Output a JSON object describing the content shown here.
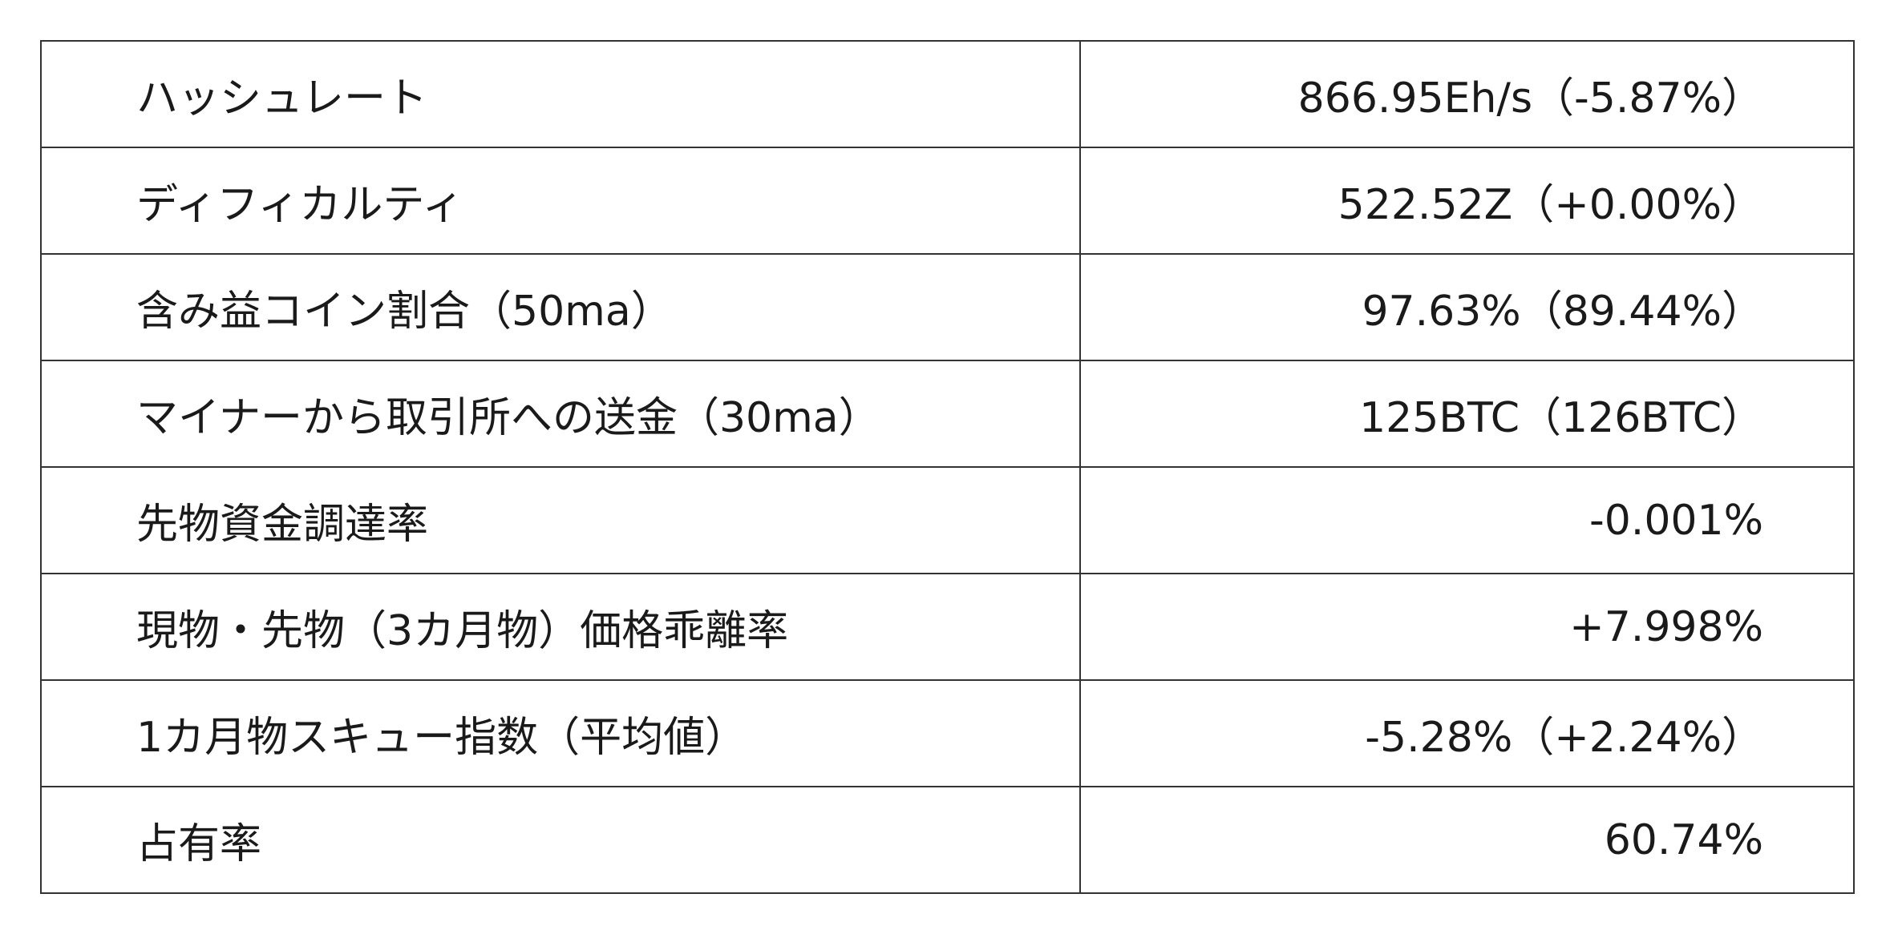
{
  "table": {
    "rows": [
      [
        "ハッシュレート",
        "866.95Eh/s（-5.87%）"
      ],
      [
        "ディフィカルティ",
        "522.52Z（+0.00%）"
      ],
      [
        "含み益コイン割合（50ma）",
        "97.63%（89.44%）"
      ],
      [
        "マイナーから取引所への送金（30ma）",
        "125BTC（126BTC）"
      ],
      [
        "先物資金調達率",
        "-0.001%"
      ],
      [
        "現物・先物（3カ月物）価格乖離率",
        "+7.998%"
      ],
      [
        "1カ月物スキュー指数（平均値）",
        "-5.28%（+2.24%）"
      ],
      [
        "占有率",
        "60.74%"
      ]
    ]
  }
}
